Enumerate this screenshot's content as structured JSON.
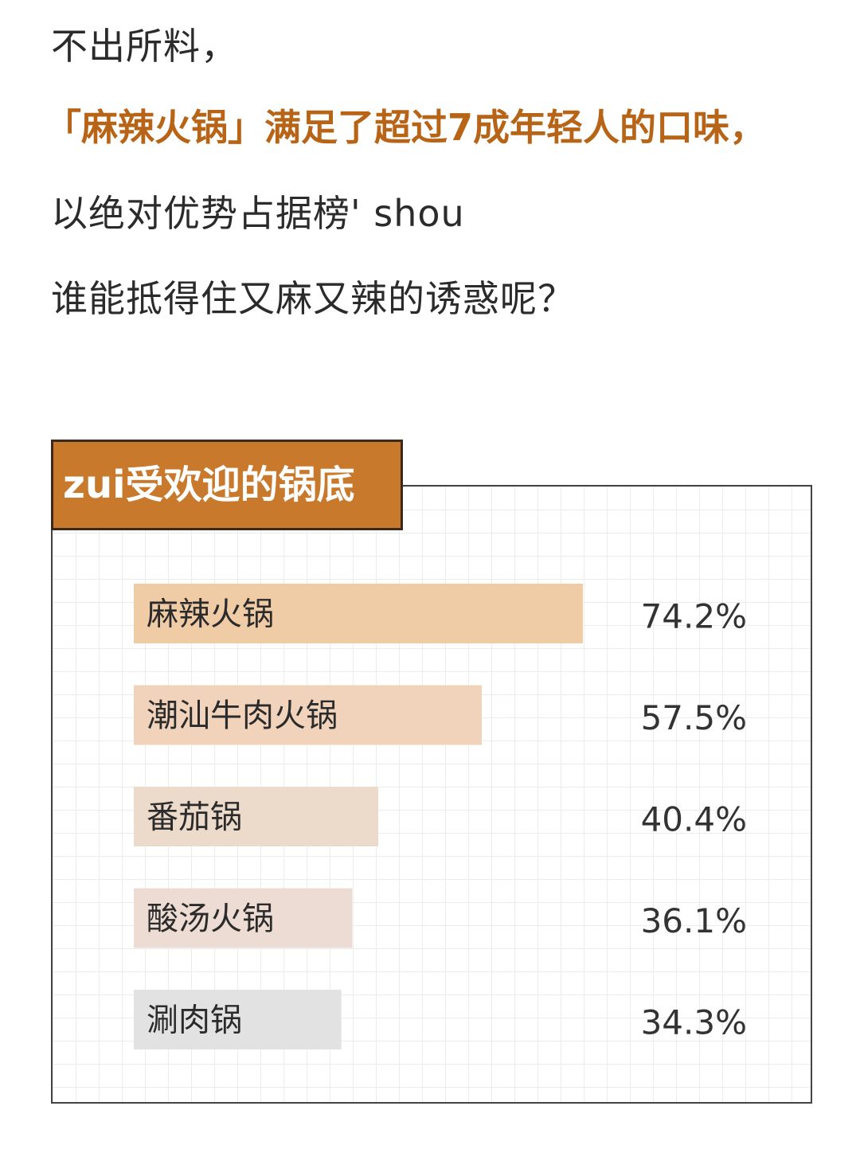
{
  "intro": {
    "line1": "不出所料，",
    "line2": "「麻辣火锅」满足了超过7成年轻人的口味，",
    "line3": "以绝对优势占据榜' shou",
    "line4": "谁能抵得住又麻又辣的诱惑呢？"
  },
  "colors": {
    "accent": "#c8792b",
    "highlight_text": "#b86416",
    "bars": [
      "#efcba6",
      "#f1d3bb",
      "#ecdacb",
      "#eddcd3",
      "#e2e2e2"
    ]
  },
  "chart_data": {
    "type": "bar",
    "orientation": "horizontal",
    "title": "zui受欢迎的锅底",
    "categories": [
      "麻辣火锅",
      "潮汕牛肉火锅",
      "番茄锅",
      "酸汤火锅",
      "涮肉锅"
    ],
    "values": [
      74.2,
      57.5,
      40.4,
      36.1,
      34.3
    ],
    "value_labels": [
      "74.2%",
      "57.5%",
      "40.4%",
      "36.1%",
      "34.3%"
    ],
    "unit": "%",
    "xlim": [
      0,
      100
    ],
    "grid": true,
    "legend": "none"
  }
}
